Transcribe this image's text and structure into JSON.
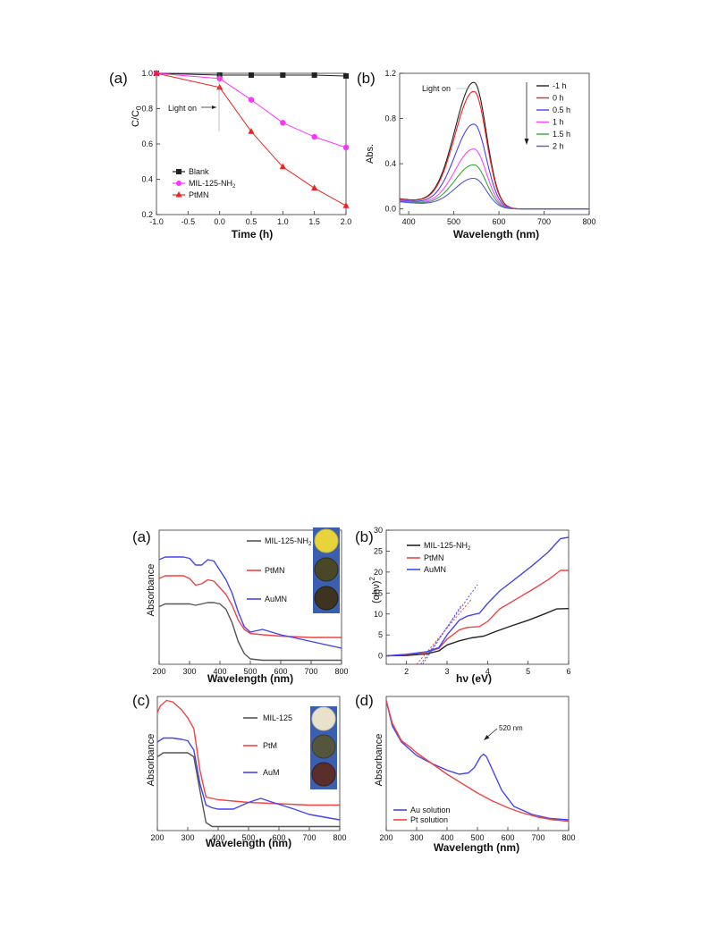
{
  "colors": {
    "black": "#222222",
    "magenta": "#ff33ff",
    "red": "#ee2222",
    "red_soft": "#ee4444",
    "blue": "#4444ee",
    "mid_blue": "#5555dd",
    "green": "#33aa33",
    "pink": "#ff44ff",
    "gray": "#555555"
  },
  "chart_data": [
    {
      "id": "top_a",
      "type": "line",
      "panel_label": "(a)",
      "xlabel": "Time (h)",
      "ylabel": "C/C0",
      "xlim": [
        -1.0,
        2.0
      ],
      "ylim": [
        0.2,
        1.0
      ],
      "xticks": [
        -1.0,
        -0.5,
        0.0,
        0.5,
        1.0,
        1.5,
        2.0
      ],
      "xtick_labels": [
        "-1.0",
        "-0.5",
        "0.0",
        "0.5",
        "1.0",
        "1.5",
        "2.0"
      ],
      "yticks": [
        0.2,
        0.4,
        0.6,
        0.8,
        1.0
      ],
      "ytick_labels": [
        "0.2",
        "0.4",
        "0.6",
        "0.8",
        "1.0"
      ],
      "annotation": "Light on",
      "legend_position": "bottom-left",
      "series": [
        {
          "name": "Blank",
          "marker": "square",
          "color": "#222222",
          "x": [
            -1.0,
            0.0,
            0.5,
            1.0,
            1.5,
            2.0
          ],
          "y": [
            1.0,
            0.99,
            0.99,
            0.99,
            0.99,
            0.985
          ]
        },
        {
          "name": "MIL-125-NH2",
          "marker": "circle",
          "color": "#ff33ff",
          "x": [
            -1.0,
            0.0,
            0.5,
            1.0,
            1.5,
            2.0
          ],
          "y": [
            1.0,
            0.97,
            0.85,
            0.72,
            0.64,
            0.58
          ]
        },
        {
          "name": "PtMN",
          "marker": "triangle",
          "color": "#ee2222",
          "x": [
            -1.0,
            0.0,
            0.5,
            1.0,
            1.5,
            2.0
          ],
          "y": [
            1.0,
            0.92,
            0.67,
            0.47,
            0.35,
            0.25
          ]
        }
      ]
    },
    {
      "id": "top_b",
      "type": "line",
      "panel_label": "(b)",
      "xlabel": "Wavelength (nm)",
      "ylabel": "Abs.",
      "xlim": [
        380,
        800
      ],
      "ylim": [
        -0.05,
        1.2
      ],
      "xticks": [
        400,
        500,
        600,
        700,
        800
      ],
      "xtick_labels": [
        "400",
        "500",
        "600",
        "700",
        "800"
      ],
      "yticks": [
        0.0,
        0.4,
        0.8,
        1.2
      ],
      "ytick_labels": [
        "0.0",
        "0.4",
        "0.8",
        "1.2"
      ],
      "annotation": "Light on",
      "legend_position": "top-right",
      "shape": {
        "center": 545,
        "left_width": 60,
        "right_width": 38,
        "base_at_380": 0.09
      },
      "series": [
        {
          "name": "-1 h",
          "color": "#222222",
          "peak": 1.12
        },
        {
          "name": "0 h",
          "color": "#ee2222",
          "peak": 1.04
        },
        {
          "name": "0.5 h",
          "color": "#4444ee",
          "peak": 0.75
        },
        {
          "name": "1 h",
          "color": "#ff44ff",
          "peak": 0.53
        },
        {
          "name": "1.5 h",
          "color": "#33aa33",
          "peak": 0.39
        },
        {
          "name": "2 h",
          "color": "#5555dd",
          "peak": 0.27
        }
      ]
    },
    {
      "id": "bot_a",
      "type": "line",
      "panel_label": "(a)",
      "xlabel": "Wavelength (nm)",
      "ylabel": "Absorbance",
      "xlim": [
        200,
        800
      ],
      "ylim": [
        0,
        1
      ],
      "xticks": [
        200,
        300,
        400,
        500,
        600,
        700,
        800
      ],
      "xtick_labels": [
        "200",
        "300",
        "400",
        "500",
        "600",
        "700",
        "800"
      ],
      "yticks": [],
      "ytick_labels": [],
      "legend_position": "top-right",
      "series": [
        {
          "name": "MIL-125-NH2",
          "color": "#555555",
          "x": [
            200,
            220,
            250,
            280,
            300,
            320,
            340,
            360,
            380,
            400,
            420,
            440,
            460,
            480,
            500,
            540,
            600,
            700,
            800
          ],
          "y": [
            0.43,
            0.45,
            0.45,
            0.45,
            0.45,
            0.44,
            0.45,
            0.46,
            0.46,
            0.45,
            0.41,
            0.31,
            0.17,
            0.08,
            0.04,
            0.03,
            0.03,
            0.03,
            0.03
          ]
        },
        {
          "name": "PtMN",
          "color": "#ee4444",
          "x": [
            200,
            220,
            250,
            280,
            300,
            320,
            340,
            360,
            380,
            400,
            420,
            440,
            460,
            480,
            500,
            540,
            600,
            700,
            800
          ],
          "y": [
            0.64,
            0.66,
            0.66,
            0.66,
            0.64,
            0.59,
            0.6,
            0.63,
            0.62,
            0.57,
            0.52,
            0.44,
            0.33,
            0.26,
            0.23,
            0.22,
            0.21,
            0.2,
            0.2
          ]
        },
        {
          "name": "AuMN",
          "color": "#4444ee",
          "x": [
            200,
            220,
            250,
            280,
            300,
            320,
            340,
            360,
            380,
            400,
            420,
            440,
            460,
            480,
            500,
            540,
            600,
            700,
            800
          ],
          "y": [
            0.78,
            0.8,
            0.8,
            0.8,
            0.79,
            0.74,
            0.74,
            0.78,
            0.77,
            0.7,
            0.63,
            0.53,
            0.39,
            0.28,
            0.24,
            0.26,
            0.22,
            0.17,
            0.12
          ]
        }
      ]
    },
    {
      "id": "bot_b",
      "type": "line",
      "panel_label": "(b)",
      "xlabel": "hν (eV)",
      "ylabel": "(αhν)²",
      "xlim": [
        1.5,
        6.0
      ],
      "ylim": [
        -2,
        30
      ],
      "xticks": [
        2,
        3,
        4,
        5,
        6
      ],
      "xtick_labels": [
        "2",
        "3",
        "4",
        "5",
        "6"
      ],
      "yticks": [
        0,
        5,
        10,
        15,
        20,
        25,
        30
      ],
      "ytick_labels": [
        "0",
        "5",
        "10",
        "15",
        "20",
        "25",
        "30"
      ],
      "legend_position": "top-left",
      "series": [
        {
          "name": "MIL-125-NH2",
          "color": "#222222",
          "x": [
            1.5,
            2.0,
            2.5,
            2.8,
            3.0,
            3.3,
            3.6,
            3.9,
            4.2,
            4.6,
            5.0,
            5.4,
            5.7,
            6.0
          ],
          "y": [
            0,
            0.1,
            0.5,
            1.2,
            2.6,
            3.6,
            4.3,
            4.7,
            5.8,
            7.2,
            8.5,
            10,
            11.2,
            11.3
          ]
        },
        {
          "name": "PtMN",
          "color": "#ee4444",
          "x": [
            1.5,
            2.0,
            2.5,
            2.8,
            3.0,
            3.3,
            3.5,
            3.8,
            4.0,
            4.3,
            4.7,
            5.1,
            5.5,
            5.8,
            6.0
          ],
          "y": [
            0,
            0.3,
            0.9,
            1.8,
            4.0,
            6.2,
            6.8,
            7.0,
            8.2,
            11.2,
            13.5,
            15.8,
            18.2,
            20.4,
            20.4
          ]
        },
        {
          "name": "AuMN",
          "color": "#4444ee",
          "x": [
            1.5,
            2.0,
            2.5,
            2.8,
            3.0,
            3.3,
            3.5,
            3.8,
            4.0,
            4.3,
            4.7,
            5.1,
            5.5,
            5.8,
            6.0
          ],
          "y": [
            0,
            0.4,
            1.0,
            2.0,
            5.0,
            8.5,
            9.5,
            10.2,
            12.5,
            15.5,
            18.5,
            21.5,
            24.8,
            28.0,
            28.3
          ]
        }
      ],
      "tangents": [
        {
          "color": "#5555dd",
          "x": [
            2.35,
            3.75
          ],
          "y": [
            -2,
            17
          ]
        },
        {
          "color": "#ee4444",
          "x": [
            2.25,
            3.6
          ],
          "y": [
            -2,
            13.5
          ]
        },
        {
          "color": "#5555dd",
          "x": [
            2.4,
            3.35
          ],
          "y": [
            -2,
            12
          ]
        }
      ]
    },
    {
      "id": "bot_c",
      "type": "line",
      "panel_label": "(c)",
      "xlabel": "Wavelength (nm)",
      "ylabel": "Absorbance",
      "xlim": [
        200,
        800
      ],
      "ylim": [
        0,
        1
      ],
      "xticks": [
        200,
        300,
        400,
        500,
        600,
        700,
        800
      ],
      "xtick_labels": [
        "200",
        "300",
        "400",
        "500",
        "600",
        "700",
        "800"
      ],
      "yticks": [],
      "ytick_labels": [],
      "legend_position": "top-right",
      "series": [
        {
          "name": "MIL-125",
          "color": "#555555",
          "x": [
            200,
            220,
            250,
            280,
            300,
            320,
            340,
            360,
            380,
            400,
            500,
            600,
            700,
            800
          ],
          "y": [
            0.55,
            0.58,
            0.58,
            0.58,
            0.58,
            0.55,
            0.3,
            0.06,
            0.03,
            0.03,
            0.03,
            0.03,
            0.03,
            0.03
          ]
        },
        {
          "name": "PtM",
          "color": "#ee4444",
          "x": [
            200,
            210,
            230,
            250,
            280,
            300,
            320,
            340,
            360,
            380,
            400,
            500,
            600,
            700,
            800
          ],
          "y": [
            0.88,
            0.93,
            0.97,
            0.96,
            0.9,
            0.84,
            0.76,
            0.45,
            0.25,
            0.24,
            0.23,
            0.21,
            0.2,
            0.19,
            0.19
          ]
        },
        {
          "name": "AuM",
          "color": "#4444ee",
          "x": [
            200,
            220,
            250,
            280,
            300,
            320,
            340,
            360,
            380,
            400,
            450,
            500,
            540,
            580,
            650,
            700,
            800
          ],
          "y": [
            0.66,
            0.69,
            0.69,
            0.68,
            0.67,
            0.6,
            0.35,
            0.19,
            0.17,
            0.16,
            0.16,
            0.21,
            0.24,
            0.21,
            0.16,
            0.12,
            0.08
          ]
        }
      ]
    },
    {
      "id": "bot_d",
      "type": "line",
      "panel_label": "(d)",
      "xlabel": "Wavelength (nm)",
      "ylabel": "Absorbance",
      "xlim": [
        200,
        800
      ],
      "ylim": [
        0,
        1
      ],
      "xticks": [
        200,
        300,
        400,
        500,
        600,
        700,
        800
      ],
      "xtick_labels": [
        "200",
        "300",
        "400",
        "500",
        "600",
        "700",
        "800"
      ],
      "yticks": [],
      "ytick_labels": [],
      "annotation": "520 nm",
      "legend_position": "bottom-left",
      "series": [
        {
          "name": "Au solution",
          "color": "#4444ee",
          "x": [
            200,
            220,
            250,
            280,
            300,
            350,
            400,
            440,
            470,
            490,
            510,
            520,
            530,
            550,
            580,
            620,
            680,
            740,
            800
          ],
          "y": [
            0.97,
            0.78,
            0.66,
            0.6,
            0.56,
            0.5,
            0.45,
            0.42,
            0.43,
            0.47,
            0.55,
            0.57,
            0.55,
            0.45,
            0.3,
            0.18,
            0.12,
            0.09,
            0.08
          ]
        },
        {
          "name": "Pt solution",
          "color": "#ee4444",
          "x": [
            200,
            220,
            250,
            280,
            300,
            350,
            400,
            450,
            500,
            550,
            600,
            650,
            700,
            750,
            800
          ],
          "y": [
            0.97,
            0.8,
            0.67,
            0.62,
            0.58,
            0.5,
            0.42,
            0.35,
            0.28,
            0.22,
            0.17,
            0.13,
            0.1,
            0.08,
            0.07
          ]
        }
      ]
    }
  ],
  "legend_labels": {
    "top_a": [
      "Blank",
      "MIL-125-NH",
      "PtMN"
    ],
    "top_a_sub": "2",
    "bot_a": [
      "MIL-125-NH",
      "PtMN",
      "AuMN"
    ],
    "bot_a_sub": "2",
    "bot_b": [
      "MIL-125-NH",
      "PtMN",
      "AuMN"
    ],
    "bot_b_sub": "2",
    "bot_c": [
      "MIL-125",
      "PtM",
      "AuM"
    ],
    "bot_d": [
      "Au solution",
      "Pt solution"
    ]
  },
  "ylabel_parts": {
    "top_a_main": "C/C",
    "top_a_sub": "0",
    "bot_b_main": "(αhν)",
    "bot_b_sup": "2"
  },
  "insets": {
    "bot_a": [
      "yellow powder",
      "dark olive powder",
      "dark brown powder"
    ],
    "bot_c": [
      "white powder",
      "dark gray powder",
      "purple-brown powder"
    ]
  }
}
